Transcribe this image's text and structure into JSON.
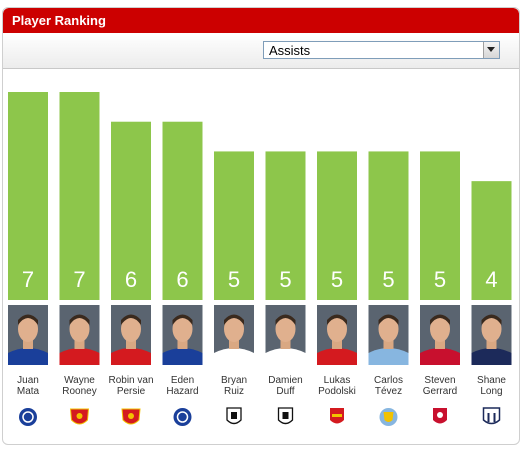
{
  "widget": {
    "title": "Player Ranking"
  },
  "metric_select": {
    "selected": "Assists"
  },
  "chart_data": {
    "type": "bar",
    "title": "",
    "xlabel": "",
    "ylabel": "",
    "ylim": [
      0,
      7
    ],
    "categories": [
      "Juan Mata",
      "Wayne Rooney",
      "Robin van Persie",
      "Eden Hazard",
      "Bryan Ruiz",
      "Damien Duff",
      "Lukas Podolski",
      "Carlos Tévez",
      "Steven Gerrard",
      "Shane Long"
    ],
    "name_lines": [
      [
        "Juan",
        "Mata"
      ],
      [
        "Wayne",
        "Rooney"
      ],
      [
        "Robin van",
        "Persie"
      ],
      [
        "Eden",
        "Hazard"
      ],
      [
        "Bryan",
        "Ruiz"
      ],
      [
        "Damien",
        "Duff"
      ],
      [
        "Lukas",
        "Podolski"
      ],
      [
        "Carlos",
        "Tévez"
      ],
      [
        "Steven",
        "Gerrard"
      ],
      [
        "Shane",
        "Long"
      ]
    ],
    "values": [
      7,
      7,
      6,
      6,
      5,
      5,
      5,
      5,
      5,
      4
    ],
    "clubs": [
      "chelsea",
      "manchester-united",
      "manchester-united",
      "chelsea",
      "fulham",
      "fulham",
      "arsenal",
      "manchester-city",
      "liverpool",
      "west-brom"
    ],
    "shirt_colors": [
      "#1a3f9a",
      "#d41a1f",
      "#d41a1f",
      "#1a3f9a",
      "#ffffff",
      "#ffffff",
      "#d41a1f",
      "#87b6e0",
      "#c8102e",
      "#1c2a5a"
    ],
    "bar_color": "#8dc64b",
    "header_color": "#cc0000"
  }
}
